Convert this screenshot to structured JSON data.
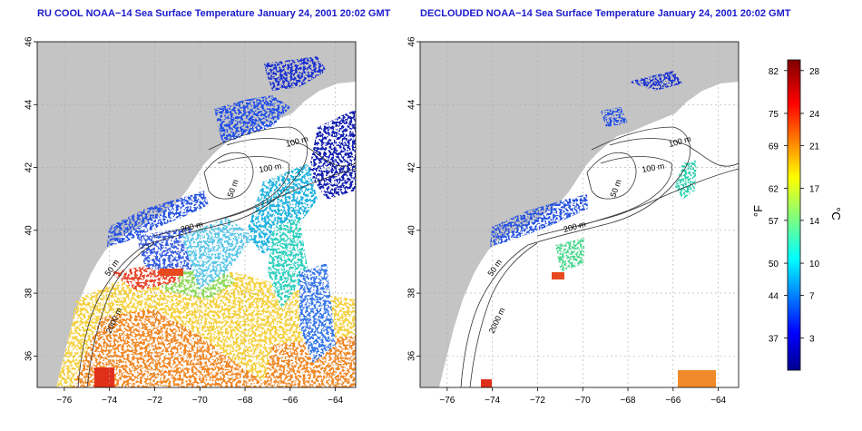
{
  "panels": [
    {
      "title": "RU COOL NOAA−14 Sea Surface Temperature January 24, 2001 20:02 GMT",
      "contour_labels": [
        "100 m",
        "100 m",
        "50 m",
        "200 m",
        "50 m",
        "2000 m"
      ]
    },
    {
      "title": "DECLOUDED NOAA−14 Sea Surface Temperature January 24, 2001 20:02 GMT",
      "contour_labels": [
        "100 m",
        "100 m",
        "50 m",
        "200 m",
        "50 m",
        "2000 m"
      ]
    }
  ],
  "axes": {
    "x_ticks": [
      "−76",
      "−74",
      "−72",
      "−70",
      "−68",
      "−66",
      "−64"
    ],
    "y_ticks": [
      "36",
      "38",
      "40",
      "42",
      "44",
      "46"
    ],
    "x_values": [
      -76,
      -74,
      -72,
      -70,
      -68,
      -66,
      -64
    ],
    "y_values": [
      36,
      38,
      40,
      42,
      44,
      46
    ],
    "xlim": [
      -77.2,
      -63.1
    ],
    "ylim": [
      35.0,
      46.0
    ],
    "grid": "dotted"
  },
  "colorbar": {
    "f_ticks": [
      "82",
      "75",
      "69",
      "62",
      "57",
      "50",
      "44",
      "37"
    ],
    "c_ticks": [
      "28",
      "24",
      "21",
      "17",
      "14",
      "10",
      "7",
      "3"
    ],
    "c_values": [
      28,
      24,
      21,
      17,
      14,
      10,
      7,
      3
    ],
    "c_range": [
      0,
      29
    ],
    "f_unit": "°F",
    "c_unit": "°C"
  },
  "colors": {
    "land": "#c4c4c4",
    "title": "#1a1acc"
  }
}
